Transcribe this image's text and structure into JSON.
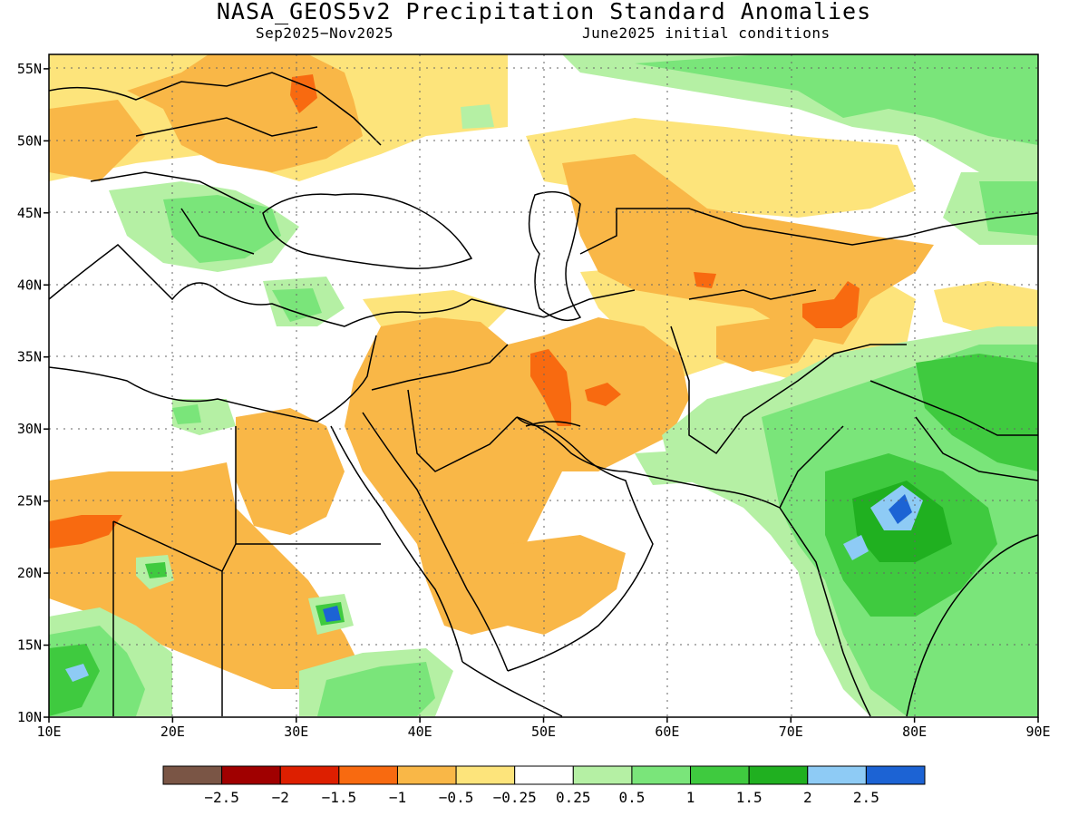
{
  "header": {
    "title": "NASA_GEOS5v2 Precipitation Standard Anomalies",
    "period": "Sep2025−Nov2025",
    "init": "June2025 initial conditions"
  },
  "map": {
    "lon_range": [
      10,
      90
    ],
    "lat_range": [
      10,
      56
    ],
    "lon_labels": [
      "10E",
      "20E",
      "30E",
      "40E",
      "50E",
      "60E",
      "70E",
      "80E",
      "90E"
    ],
    "lat_labels": [
      "10N",
      "15N",
      "20N",
      "25N",
      "30N",
      "35N",
      "40N",
      "45N",
      "50N",
      "55N"
    ],
    "grid": "dotted"
  },
  "colorbar": {
    "colors": [
      "#7a5545",
      "#a00000",
      "#dd1f00",
      "#f86a10",
      "#f9b747",
      "#fde47b",
      "#ffffff",
      "#b5f0a4",
      "#7ae57a",
      "#3fca3f",
      "#20b020",
      "#8ecbf5",
      "#1c63d4"
    ],
    "labels": [
      "−2.5",
      "−2",
      "−1.5",
      "−1",
      "−0.5",
      "−0.25",
      "0.25",
      "0.5",
      "1",
      "1.5",
      "2",
      "2.5"
    ]
  },
  "anomaly_colors": {
    "strong_dry": "#f86a10",
    "dry": "#f9b747",
    "light_dry": "#fde47b",
    "light_wet": "#b5f0a4",
    "wet": "#7ae57a",
    "very_wet": "#3fca3f",
    "extreme_wet": "#20b020",
    "blue_light": "#8ecbf5",
    "blue_dark": "#1c63d4"
  }
}
